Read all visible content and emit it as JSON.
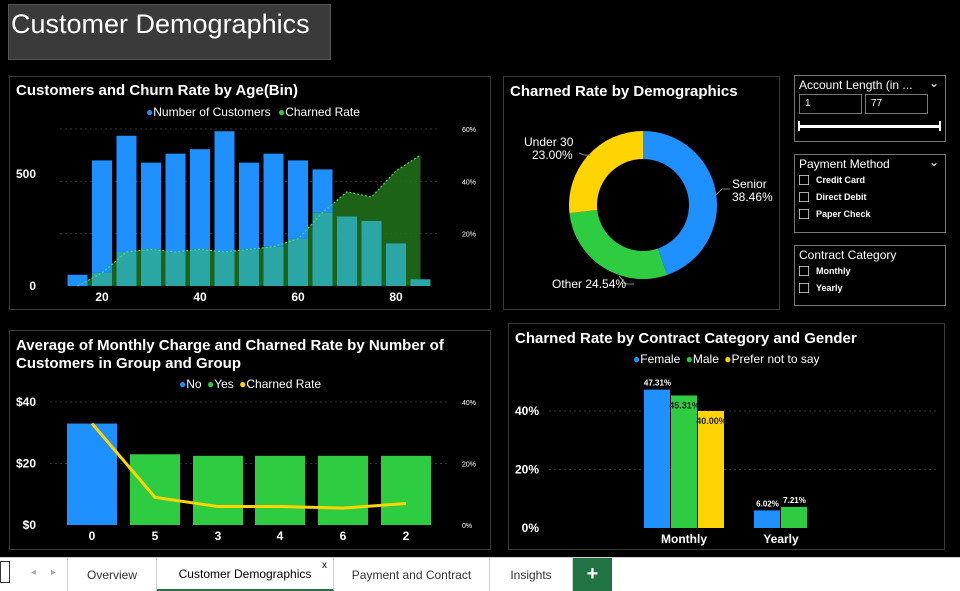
{
  "dashboard_title": "Customer Demographics",
  "colors": {
    "blue": "#1e90ff",
    "green": "#2ecc40",
    "yellow": "#ffd400",
    "teal": "#2aa6a6",
    "darkgreen": "#1f6e1a"
  },
  "age_chart": {
    "title": "Customers and Churn Rate by Age(Bin)",
    "legend": {
      "customers": "Number of Customers",
      "churn": "Charned Rate"
    },
    "y_left_ticks": [
      "500",
      "0"
    ],
    "y_right_ticks": [
      "60%",
      "40%",
      "20%"
    ],
    "x_ticks": [
      "20",
      "40",
      "60",
      "80"
    ],
    "chart_data": {
      "type": "bar",
      "x": [
        15,
        20,
        25,
        30,
        35,
        40,
        45,
        50,
        55,
        60,
        65,
        70,
        75,
        80,
        85
      ],
      "customers": [
        50,
        560,
        670,
        550,
        590,
        610,
        690,
        550,
        590,
        560,
        520,
        310,
        290,
        190,
        30
      ],
      "churn_rate": [
        0,
        0.05,
        0.13,
        0.14,
        0.13,
        0.14,
        0.13,
        0.14,
        0.15,
        0.18,
        0.28,
        0.36,
        0.34,
        0.44,
        0.5
      ]
    }
  },
  "donut": {
    "title": "Charned Rate by Demographics",
    "labels": {
      "senior_name": "Senior",
      "senior_pct": "38.46%",
      "other": "Other 24.54%",
      "under_name": "Under 30",
      "under_pct": "23.00%"
    },
    "chart_data": {
      "type": "pie",
      "slices": [
        {
          "name": "Senior",
          "value": 38.46
        },
        {
          "name": "Other",
          "value": 24.54
        },
        {
          "name": "Under 30",
          "value": 23.0
        }
      ]
    }
  },
  "slicer_account": {
    "title": "Account Length (in ...",
    "min": "1",
    "max": "77"
  },
  "slicer_payment": {
    "title": "Payment Method",
    "options": [
      "Credit Card",
      "Direct Debit",
      "Paper Check"
    ]
  },
  "slicer_contract": {
    "title": "Contract Category",
    "options": [
      "Monthly",
      "Yearly"
    ]
  },
  "group_chart": {
    "title_line1": "Average of Monthly Charge and Charned Rate by Number of",
    "title_line2": "Customers in Group and Group",
    "legend": {
      "no": "No",
      "yes": "Yes",
      "churn": "Charned Rate"
    },
    "y_left_ticks": [
      "$40",
      "$20",
      "$0"
    ],
    "y_right_ticks": [
      "40%",
      "20%",
      "0%"
    ],
    "chart_data": {
      "type": "bar",
      "categories": [
        "0",
        "5",
        "3",
        "4",
        "6",
        "2"
      ],
      "avg_monthly_charge": [
        33,
        23,
        22.5,
        22.5,
        22.5,
        22.5
      ],
      "group": [
        "No",
        "Yes",
        "Yes",
        "Yes",
        "Yes",
        "Yes"
      ],
      "churn_rate": [
        0.33,
        0.09,
        0.06,
        0.06,
        0.055,
        0.07
      ]
    }
  },
  "contract_chart": {
    "title": "Charned Rate by Contract Category and Gender",
    "legend": {
      "female": "Female",
      "male": "Male",
      "pns": "Prefer not to say"
    },
    "y_ticks": [
      "40%",
      "20%",
      "0%"
    ],
    "categories": [
      "Monthly",
      "Yearly"
    ],
    "chart_data": {
      "type": "bar",
      "categories": [
        "Monthly",
        "Yearly"
      ],
      "series": [
        {
          "name": "Female",
          "values": [
            47.31,
            6.02
          ],
          "labels": [
            "47.31%",
            "6.02%"
          ]
        },
        {
          "name": "Male",
          "values": [
            45.31,
            7.21
          ],
          "labels": [
            "45.31%",
            "7.21%"
          ]
        },
        {
          "name": "Prefer not to say",
          "values": [
            40.0,
            null
          ],
          "labels": [
            "40.00%",
            ""
          ]
        }
      ]
    }
  },
  "tabs": {
    "overview": "Overview",
    "demographics": "Customer Demographics",
    "payment": "Payment and Contract",
    "insights": "Insights",
    "add": "+",
    "close": "x"
  }
}
